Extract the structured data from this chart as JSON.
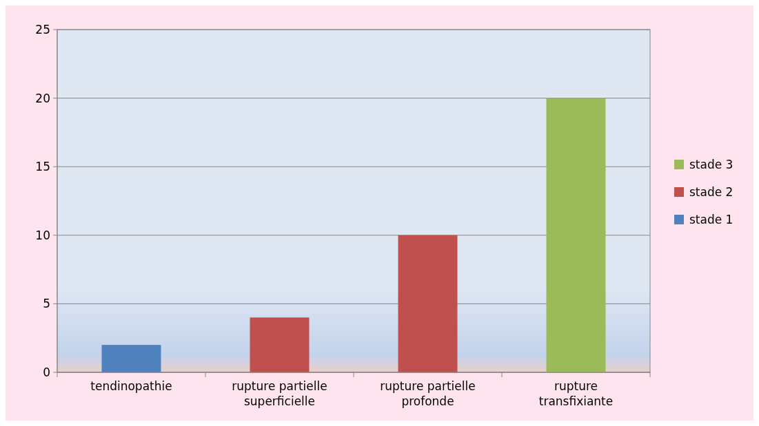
{
  "chart_data": {
    "type": "bar",
    "stacked": true,
    "categories": [
      "tendinopathie",
      "rupture partielle superficielle",
      "rupture partielle profonde",
      "rupture transfixiante"
    ],
    "series": [
      {
        "name": "stade 1",
        "color": "#4f81bd",
        "values": [
          2,
          null,
          null,
          null
        ]
      },
      {
        "name": "stade 2",
        "color": "#c0504d",
        "values": [
          null,
          4,
          10,
          null
        ]
      },
      {
        "name": "stade 3",
        "color": "#9bbb59",
        "values": [
          null,
          null,
          null,
          20
        ]
      }
    ],
    "ylim": [
      0,
      25
    ],
    "yticks": [
      0,
      5,
      10,
      15,
      20,
      25
    ],
    "grid": "y",
    "legend": "right"
  }
}
